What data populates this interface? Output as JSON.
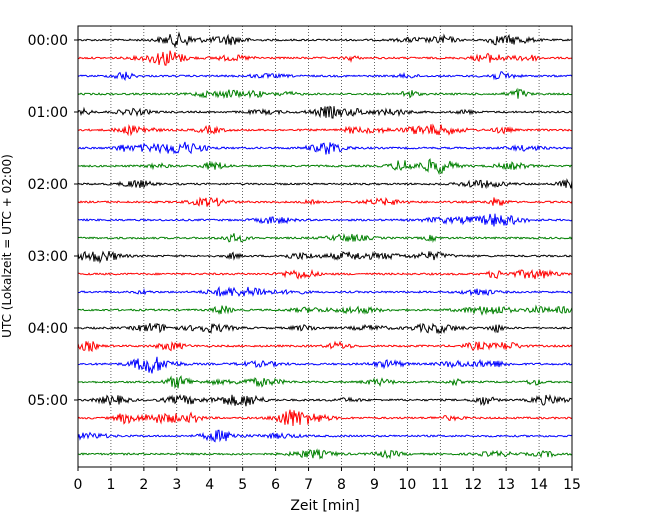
{
  "chart_data": {
    "type": "line",
    "title": "",
    "xlabel": "Zeit  [min]",
    "ylabel": "UTC (Lokalzeit = UTC + 02:00)",
    "xlim": [
      0,
      15
    ],
    "x_ticks": [
      "0",
      "1",
      "2",
      "3",
      "4",
      "5",
      "6",
      "7",
      "8",
      "9",
      "10",
      "11",
      "12",
      "13",
      "14",
      "15"
    ],
    "y_ticks": [
      "00:00",
      "01:00",
      "02:00",
      "03:00",
      "04:00",
      "05:00"
    ],
    "grid": "vertical dotted",
    "trace_interval_minutes": 15,
    "trace_count": 24,
    "trace_colors": [
      "#000000",
      "#ff0000",
      "#0000ff",
      "#008000"
    ]
  }
}
